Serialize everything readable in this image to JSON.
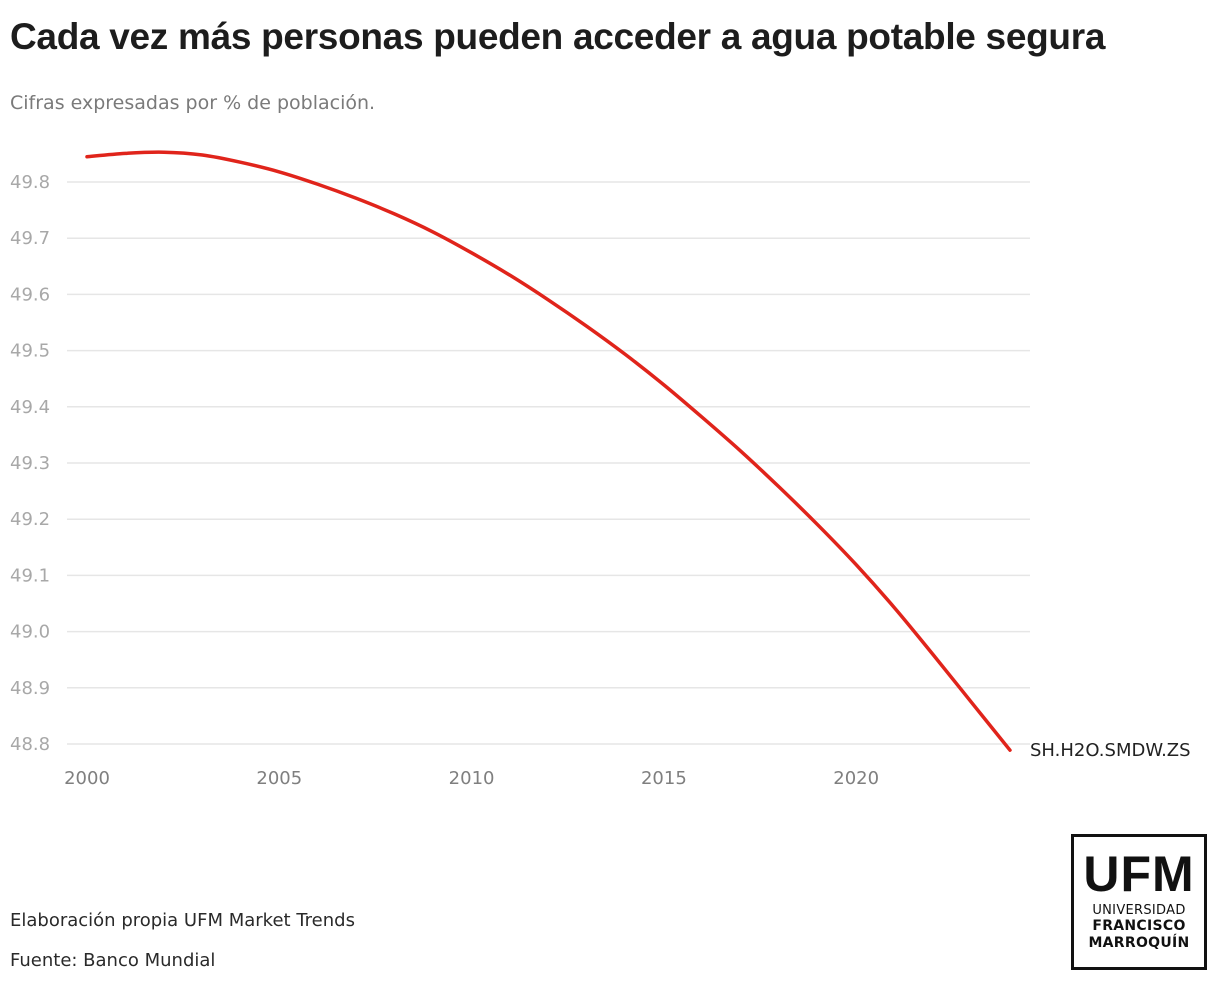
{
  "header": {
    "title": "Cada vez más personas pueden acceder a agua potable segura",
    "subtitle": "Cifras expresadas por % de población."
  },
  "footer": {
    "credit": "Elaboración propia UFM Market Trends",
    "source": "Fuente: Banco Mundial"
  },
  "logo": {
    "acronym": "UFM",
    "line1": "UNIVERSIDAD",
    "line2": "FRANCISCO",
    "line3": "MARROQUÍN"
  },
  "colors": {
    "series": "#e0241b",
    "grid": "#e6e6e6"
  },
  "chart_data": {
    "type": "line",
    "title": "Cada vez más personas pueden acceder a agua potable segura",
    "subtitle": "Cifras expresadas por % de población.",
    "xlabel": "",
    "ylabel": "",
    "xlim": [
      2000,
      2024
    ],
    "ylim": [
      48.8,
      49.85
    ],
    "grid": true,
    "legend": "direct label at line end (right)",
    "x_ticks": [
      2000,
      2005,
      2010,
      2015,
      2020
    ],
    "x_tick_labels": [
      "2000",
      "2005",
      "2010",
      "2015",
      "2020"
    ],
    "y_ticks": [
      48.8,
      48.9,
      49.0,
      49.1,
      49.2,
      49.3,
      49.4,
      49.5,
      49.6,
      49.7,
      49.8
    ],
    "y_tick_labels": [
      "48.8",
      "48.9",
      "49.0",
      "49.1",
      "49.2",
      "49.3",
      "49.4",
      "49.5",
      "49.6",
      "49.7",
      "49.8"
    ],
    "x": [
      2000,
      2001,
      2002,
      2003,
      2004,
      2005,
      2006,
      2007,
      2008,
      2009,
      2010,
      2011,
      2012,
      2013,
      2014,
      2015,
      2016,
      2017,
      2018,
      2019,
      2020,
      2021,
      2022,
      2023,
      2024
    ],
    "series": [
      {
        "name": "SH.H2O.SMDW.ZS",
        "values": [
          49.845,
          49.851,
          49.853,
          49.848,
          49.835,
          49.818,
          49.796,
          49.771,
          49.743,
          49.711,
          49.674,
          49.634,
          49.59,
          49.543,
          49.493,
          49.439,
          49.381,
          49.321,
          49.257,
          49.19,
          49.119,
          49.042,
          48.959,
          48.874,
          48.789
        ]
      }
    ]
  }
}
